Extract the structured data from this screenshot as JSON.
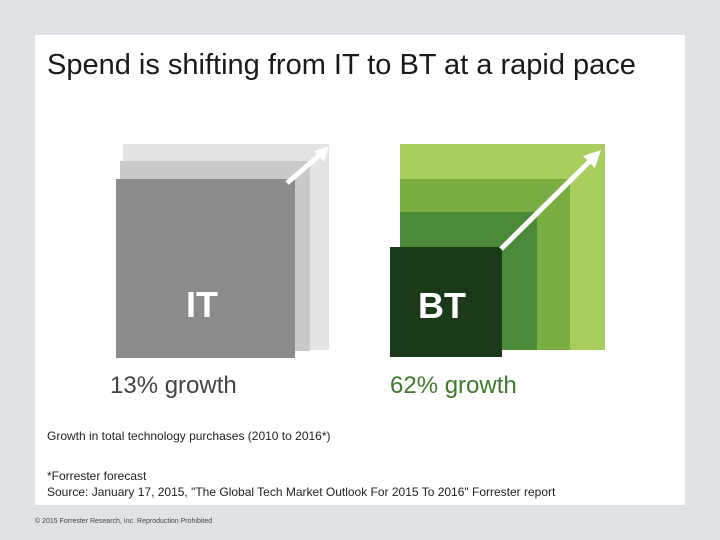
{
  "title": "Spend is shifting from IT to BT at a rapid pace",
  "it": {
    "label": "IT",
    "growth": "13% growth",
    "growth_color": "#444444"
  },
  "bt": {
    "label": "BT",
    "growth": "62% growth",
    "growth_color": "#3f7a2c"
  },
  "caption": "Growth in total technology purchases (2010 to 2016*)",
  "footnote": "*Forrester forecast",
  "source": "Source: January 17, 2015, \"The Global Tech Market Outlook For 2015 To 2016\" Forrester report",
  "copyright": "© 2015 Forrester Research, Inc. Reproduction Prohibited",
  "colors": {
    "it_layers": [
      "#e3e3e3",
      "#c9c9c9",
      "#8b8c8b"
    ],
    "bt_layers": [
      "#a8cf5e",
      "#7aae42",
      "#4b8a38",
      "#1b3a18"
    ]
  }
}
